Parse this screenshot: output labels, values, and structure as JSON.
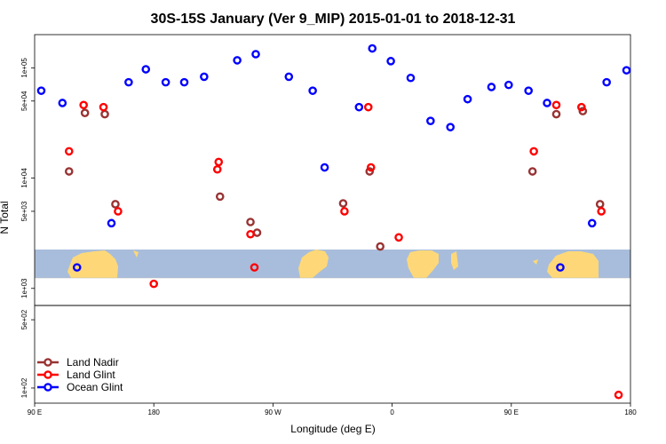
{
  "chart_data": {
    "type": "scatter",
    "title": "30S-15S January (Ver 9_MIP)   2015-01-01 to 2018-12-31",
    "xlabel": "Longitude (deg E)",
    "ylabel": "N Total",
    "x_ticks": [
      "90 E",
      "180",
      "90 W",
      "0",
      "90 E",
      "180"
    ],
    "x_tick_values": [
      90,
      180,
      270,
      360,
      450,
      540
    ],
    "xlim": [
      90,
      540
    ],
    "y_scale": "log",
    "ylim_upper": [
      700,
      200000
    ],
    "ylim_lower": [
      70,
      700
    ],
    "y_ticks_upper": [
      "1e+03",
      "5e+03",
      "1e+04",
      "5e+04",
      "1e+05"
    ],
    "y_tick_values_upper": [
      1000,
      5000,
      10000,
      50000,
      100000
    ],
    "y_ticks_lower": [
      "1e+02",
      "5e+02"
    ],
    "y_tick_values_lower": [
      100,
      500
    ],
    "legend_position": "bottom-left",
    "series": [
      {
        "name": "Land Nadir",
        "color": "#993333",
        "points": [
          [
            116,
            11500
          ],
          [
            128,
            39000
          ],
          [
            143,
            38000
          ],
          [
            151,
            5800
          ],
          [
            230,
            6800
          ],
          [
            253,
            4000
          ],
          [
            258,
            3200
          ],
          [
            323,
            5900
          ],
          [
            343,
            11500
          ],
          [
            351,
            2400
          ],
          [
            466,
            11500
          ],
          [
            484,
            38000
          ],
          [
            504,
            40500
          ],
          [
            517,
            5800
          ]
        ]
      },
      {
        "name": "Land Glint",
        "color": "#ff0000",
        "points": [
          [
            116,
            17500
          ],
          [
            127,
            46000
          ],
          [
            142,
            44000
          ],
          [
            153,
            5000
          ],
          [
            180,
            1100
          ],
          [
            228,
            12000
          ],
          [
            229,
            14000
          ],
          [
            253,
            3100
          ],
          [
            256,
            1550
          ],
          [
            324,
            5000
          ],
          [
            342,
            44000
          ],
          [
            344,
            12500
          ],
          [
            365,
            2900
          ],
          [
            467,
            17500
          ],
          [
            484,
            46000
          ],
          [
            503,
            44000
          ],
          [
            518,
            5000
          ],
          [
            531,
            85
          ]
        ]
      },
      {
        "name": "Ocean Glint",
        "color": "#0000ff",
        "points": [
          [
            95,
            62000
          ],
          [
            111,
            48000
          ],
          [
            122,
            1550
          ],
          [
            148,
            3900
          ],
          [
            161,
            74000
          ],
          [
            174,
            97000
          ],
          [
            189,
            74000
          ],
          [
            203,
            74000
          ],
          [
            218,
            83000
          ],
          [
            243,
            117000
          ],
          [
            257,
            133000
          ],
          [
            282,
            83000
          ],
          [
            300,
            62000
          ],
          [
            309,
            12500
          ],
          [
            335,
            44000
          ],
          [
            345,
            150000
          ],
          [
            359,
            115000
          ],
          [
            374,
            81000
          ],
          [
            389,
            33000
          ],
          [
            404,
            29000
          ],
          [
            417,
            52000
          ],
          [
            435,
            67000
          ],
          [
            448,
            70000
          ],
          [
            463,
            62000
          ],
          [
            477,
            48000
          ],
          [
            487,
            1550
          ],
          [
            511,
            3900
          ],
          [
            522,
            74000
          ],
          [
            537,
            95000
          ]
        ]
      }
    ]
  },
  "colors": {
    "ocean": "#a8bddb",
    "land": "#fed878"
  }
}
